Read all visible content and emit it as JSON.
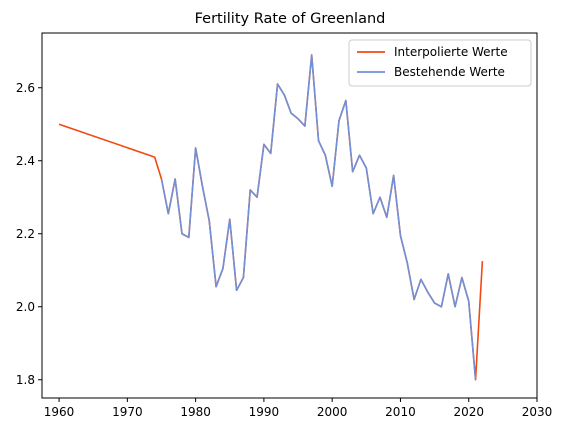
{
  "chart_data": {
    "type": "line",
    "title": "Fertility Rate of Greenland",
    "xlabel": "",
    "ylabel": "",
    "xlim": [
      1957.5,
      2030
    ],
    "ylim": [
      1.75,
      2.75
    ],
    "xticks": [
      1960,
      1970,
      1980,
      1990,
      2000,
      2010,
      2020,
      2030
    ],
    "yticks": [
      1.8,
      2.0,
      2.2,
      2.4,
      2.6
    ],
    "legend": "top-right",
    "grid": false,
    "series": [
      {
        "name": "Interpolierte Werte",
        "color": "#f04a10",
        "x": [
          1960,
          1974,
          1975,
          1976,
          1977,
          1978,
          1979,
          1980,
          1981,
          1982,
          1983,
          1984,
          1985,
          1986,
          1987,
          1988,
          1989,
          1990,
          1991,
          1992,
          1993,
          1994,
          1995,
          1996,
          1997,
          1998,
          1999,
          2000,
          2001,
          2002,
          2003,
          2004,
          2005,
          2006,
          2007,
          2008,
          2009,
          2010,
          2011,
          2012,
          2013,
          2014,
          2015,
          2016,
          2017,
          2018,
          2019,
          2020,
          2021,
          2022
        ],
        "y": [
          2.5,
          2.41,
          2.35,
          2.255,
          2.35,
          2.2,
          2.19,
          2.435,
          2.33,
          2.235,
          2.055,
          2.105,
          2.24,
          2.045,
          2.08,
          2.32,
          2.3,
          2.445,
          2.42,
          2.61,
          2.58,
          2.53,
          2.515,
          2.495,
          2.69,
          2.455,
          2.415,
          2.33,
          2.51,
          2.565,
          2.37,
          2.415,
          2.38,
          2.255,
          2.3,
          2.245,
          2.36,
          2.195,
          2.12,
          2.02,
          2.075,
          2.04,
          2.01,
          2.0,
          2.09,
          2.0,
          2.08,
          2.015,
          1.8,
          2.125
        ]
      },
      {
        "name": "Bestehende Werte",
        "color": "#7090d8",
        "x": [
          1975,
          1976,
          1977,
          1978,
          1979,
          1980,
          1981,
          1982,
          1983,
          1984,
          1985,
          1986,
          1987,
          1988,
          1989,
          1990,
          1991,
          1992,
          1993,
          1994,
          1995,
          1996,
          1997,
          1998,
          1999,
          2000,
          2001,
          2002,
          2003,
          2004,
          2005,
          2006,
          2007,
          2008,
          2009,
          2010,
          2011,
          2012,
          2013,
          2014,
          2015,
          2016,
          2017,
          2018,
          2019,
          2020,
          2021
        ],
        "y": [
          2.35,
          2.255,
          2.35,
          2.2,
          2.19,
          2.435,
          2.33,
          2.235,
          2.055,
          2.105,
          2.24,
          2.045,
          2.08,
          2.32,
          2.3,
          2.445,
          2.42,
          2.61,
          2.58,
          2.53,
          2.515,
          2.495,
          2.69,
          2.455,
          2.415,
          2.33,
          2.51,
          2.565,
          2.37,
          2.415,
          2.38,
          2.255,
          2.3,
          2.245,
          2.36,
          2.195,
          2.12,
          2.02,
          2.075,
          2.04,
          2.01,
          2.0,
          2.09,
          2.0,
          2.08,
          2.015,
          1.8
        ]
      }
    ]
  }
}
